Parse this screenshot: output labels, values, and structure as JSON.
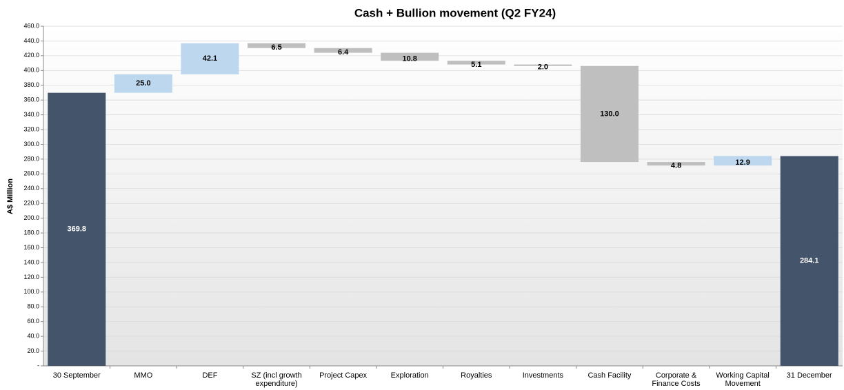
{
  "chart_data": {
    "type": "waterfall",
    "title": "Cash + Bullion movement  (Q2 FY24)",
    "ylabel": "A$ Million",
    "categories": [
      "30 September",
      "MMO",
      "DEF",
      "SZ (incl growth expenditure)",
      "Project Capex",
      "Exploration",
      "Royalties",
      "Investments",
      "Cash Facility",
      "Corporate & Finance Costs",
      "Working Capital Movement",
      "31 December"
    ],
    "values": [
      369.8,
      25.0,
      42.1,
      -6.5,
      -6.4,
      -10.8,
      -5.1,
      -2.0,
      -130.0,
      -4.8,
      12.9,
      284.1
    ],
    "value_labels": [
      "369.8",
      "25.0",
      "42.1",
      "6.5",
      "6.4",
      "10.8",
      "5.1",
      "2.0",
      "130.0",
      "4.8",
      "12.9",
      "284.1"
    ],
    "measures": [
      "total",
      "relative",
      "relative",
      "relative",
      "relative",
      "relative",
      "relative",
      "relative",
      "relative",
      "relative",
      "relative",
      "total"
    ],
    "colors": {
      "total": "#44546a",
      "increase": "#bdd7ee",
      "decrease": "#bfbfbf"
    },
    "ylim": [
      0,
      460
    ],
    "yticks": [
      {
        "value": 0,
        "label": "-"
      },
      {
        "value": 20,
        "label": "20.0"
      },
      {
        "value": 40,
        "label": "40.0"
      },
      {
        "value": 60,
        "label": "60.0"
      },
      {
        "value": 80,
        "label": "80.0"
      },
      {
        "value": 100,
        "label": "100.0"
      },
      {
        "value": 120,
        "label": "120.0"
      },
      {
        "value": 140,
        "label": "140.0"
      },
      {
        "value": 160,
        "label": "160.0"
      },
      {
        "value": 180,
        "label": "180.0"
      },
      {
        "value": 200,
        "label": "200.0"
      },
      {
        "value": 220,
        "label": "220.0"
      },
      {
        "value": 240,
        "label": "240.0"
      },
      {
        "value": 260,
        "label": "260.0"
      },
      {
        "value": 280,
        "label": "280.0"
      },
      {
        "value": 300,
        "label": "300.0"
      },
      {
        "value": 320,
        "label": "320.0"
      },
      {
        "value": 340,
        "label": "340.0"
      },
      {
        "value": 360,
        "label": "360.0"
      },
      {
        "value": 380,
        "label": "380.0"
      },
      {
        "value": 400,
        "label": "400.0"
      },
      {
        "value": 420,
        "label": "420.0"
      },
      {
        "value": 440,
        "label": "440.0"
      },
      {
        "value": 460,
        "label": "460.0"
      }
    ],
    "grid": true
  }
}
